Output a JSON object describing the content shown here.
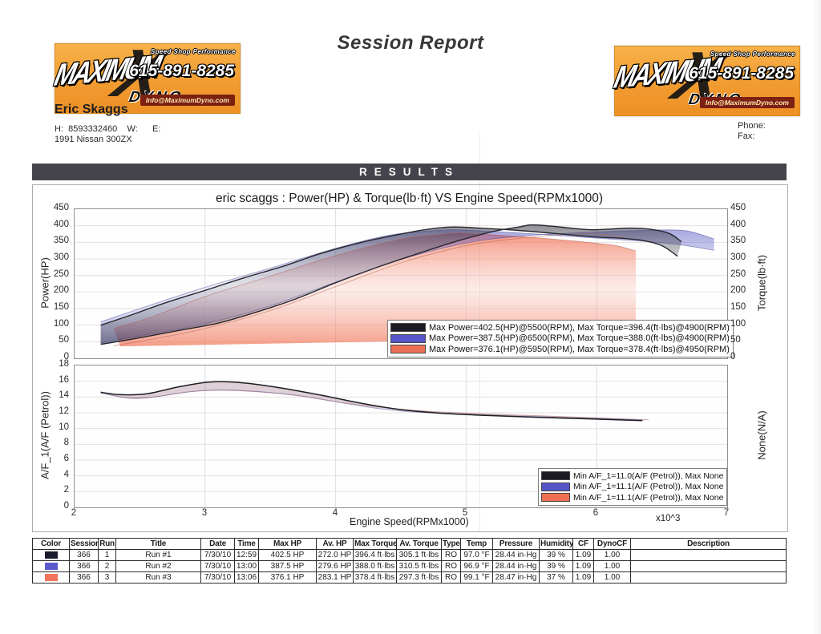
{
  "page": {
    "title": "Session Report"
  },
  "logo": {
    "brand_top": "MAXIMUM",
    "brand_bottom": "DYNO",
    "x_glyph": "X",
    "tagline": "Speed Shop Performance",
    "phone": "615-891-8285",
    "email": "Info@MaximumDyno.com"
  },
  "customer": {
    "name": "Eric Skaggs",
    "contact_line": "H:  8593332460    W:      E:",
    "vehicle": "1991 Nissan 300ZX",
    "phone_label": "Phone:",
    "fax_label": "Fax:"
  },
  "results_banner": "RESULTS",
  "chart_data": [
    {
      "type": "line",
      "title": "eric scaggs : Power(HP) & Torque(lb·ft) VS Engine Speed(RPMx1000)",
      "xlabel": "Engine Speed(RPMx1000)",
      "ylabel_left": "Power(HP)",
      "ylabel_right": "Torque(lb·ft)",
      "xlim": [
        2,
        7
      ],
      "ylim": [
        0,
        450
      ],
      "yticks": [
        0,
        50,
        100,
        150,
        200,
        250,
        300,
        350,
        400,
        450
      ],
      "xticks": [
        2,
        3,
        4,
        5,
        6,
        7
      ],
      "grid": true,
      "legend_position": "lower-right-inside",
      "legend": [
        {
          "color": "#1b1b26",
          "label": "Max Power=402.5(HP)@5500(RPM), Max Torque=396.4(ft·lbs)@4900(RPM)"
        },
        {
          "color": "#5656c8",
          "label": "Max Power=387.5(HP)@6500(RPM), Max Torque=388.0(ft·lbs)@4900(RPM)"
        },
        {
          "color": "#ee7054",
          "label": "Max Power=376.1(HP)@5950(RPM), Max Torque=378.4(ft·lbs)@4950(RPM)"
        }
      ],
      "band_colors": [
        "#2e2e3a",
        "#4646be",
        "#f07456"
      ],
      "band_base": [
        [
          2.35,
          36
        ],
        [
          6.3,
          64
        ]
      ],
      "series": [
        {
          "name": "Run #1 Torque",
          "color": "#26262e",
          "points": [
            [
              2.2,
              100
            ],
            [
              2.4,
              126
            ],
            [
              2.7,
              168
            ],
            [
              3.0,
              205
            ],
            [
              3.3,
              243
            ],
            [
              3.6,
              278
            ],
            [
              3.9,
              318
            ],
            [
              4.2,
              350
            ],
            [
              4.5,
              375
            ],
            [
              4.7,
              389
            ],
            [
              4.9,
              396.4
            ],
            [
              5.1,
              393
            ],
            [
              5.4,
              386
            ],
            [
              5.7,
              376
            ],
            [
              6.0,
              366
            ],
            [
              6.2,
              362
            ],
            [
              6.35,
              356
            ],
            [
              6.5,
              340
            ],
            [
              6.62,
              308
            ]
          ]
        },
        {
          "name": "Run #1 Power",
          "color": "#26262e",
          "points": [
            [
              2.2,
              42
            ],
            [
              2.5,
              62
            ],
            [
              2.8,
              84
            ],
            [
              3.1,
              106
            ],
            [
              3.4,
              140
            ],
            [
              3.7,
              180
            ],
            [
              4.0,
              228
            ],
            [
              4.3,
              272
            ],
            [
              4.6,
              312
            ],
            [
              4.9,
              350
            ],
            [
              5.2,
              382
            ],
            [
              5.4,
              396
            ],
            [
              5.5,
              402.5
            ],
            [
              5.65,
              399
            ],
            [
              5.8,
              393
            ],
            [
              5.95,
              388
            ],
            [
              6.1,
              390
            ],
            [
              6.25,
              393
            ],
            [
              6.4,
              390
            ],
            [
              6.55,
              378
            ],
            [
              6.65,
              352
            ]
          ]
        },
        {
          "name": "Run #2 Torque",
          "color": "rgba(70,70,150,0.5)",
          "points": [
            [
              2.2,
              110
            ],
            [
              2.5,
              150
            ],
            [
              3.0,
              214
            ],
            [
              3.5,
              272
            ],
            [
              4.0,
              332
            ],
            [
              4.4,
              371
            ],
            [
              4.7,
              384
            ],
            [
              4.9,
              388
            ],
            [
              5.2,
              383
            ],
            [
              5.5,
              376
            ],
            [
              5.8,
              368
            ],
            [
              6.1,
              360
            ],
            [
              6.4,
              352
            ],
            [
              6.65,
              342
            ],
            [
              6.9,
              326
            ]
          ]
        },
        {
          "name": "Run #2 Power",
          "color": "rgba(70,70,150,0.5)",
          "points": [
            [
              2.2,
              46
            ],
            [
              2.5,
              67
            ],
            [
              3.0,
              104
            ],
            [
              3.5,
              158
            ],
            [
              4.0,
              230
            ],
            [
              4.5,
              298
            ],
            [
              5.0,
              348
            ],
            [
              5.4,
              368
            ],
            [
              5.8,
              378
            ],
            [
              6.1,
              383
            ],
            [
              6.35,
              386
            ],
            [
              6.5,
              387.5
            ],
            [
              6.7,
              384
            ],
            [
              6.9,
              360
            ]
          ]
        },
        {
          "name": "Run #3 Torque",
          "color": "rgba(180,100,88,0.55)",
          "points": [
            [
              2.3,
              90
            ],
            [
              2.6,
              126
            ],
            [
              3.0,
              186
            ],
            [
              3.5,
              248
            ],
            [
              4.0,
              310
            ],
            [
              4.5,
              360
            ],
            [
              4.8,
              374
            ],
            [
              4.95,
              378.4
            ],
            [
              5.2,
              373
            ],
            [
              5.5,
              365
            ],
            [
              5.8,
              355
            ],
            [
              6.0,
              347
            ],
            [
              6.15,
              340
            ],
            [
              6.3,
              324
            ]
          ]
        },
        {
          "name": "Run #3 Power",
          "color": "rgba(180,100,88,0.55)",
          "points": [
            [
              2.3,
              38
            ],
            [
              2.6,
              58
            ],
            [
              3.0,
              90
            ],
            [
              3.5,
              144
            ],
            [
              4.0,
              216
            ],
            [
              4.5,
              288
            ],
            [
              5.0,
              340
            ],
            [
              5.4,
              362
            ],
            [
              5.7,
              372
            ],
            [
              5.95,
              376.1
            ],
            [
              6.1,
              371
            ],
            [
              6.25,
              360
            ]
          ]
        }
      ]
    },
    {
      "type": "line",
      "title": "",
      "xlabel": "Engine Speed(RPMx1000)",
      "x_scale_note": "x10^3",
      "ylabel_left": "A/F_1(A/F (Petrol))",
      "ylabel_right": "None(N/A)",
      "xlim": [
        2,
        7
      ],
      "ylim": [
        0,
        18
      ],
      "yticks": [
        0,
        2,
        4,
        6,
        8,
        10,
        12,
        14,
        16,
        18
      ],
      "xticks": [
        2,
        3,
        4,
        5,
        6,
        7
      ],
      "grid": true,
      "legend_position": "lower-right-inside",
      "legend": [
        {
          "color": "#1b1b26",
          "label": "Min A/F_1=11.0(A/F (Petrol)), Max None"
        },
        {
          "color": "#5656c8",
          "label": "Min A/F_1=11.1(A/F (Petrol)), Max None"
        },
        {
          "color": "#ee7054",
          "label": "Min A/F_1=11.1(A/F (Petrol)), Max None"
        }
      ],
      "band_fills": [
        "rgba(140,90,110,0.28)",
        "rgba(100,100,175,0.22)"
      ],
      "series": [
        {
          "name": "Run #1 A/F",
          "color": "#1d1d24",
          "points": [
            [
              2.2,
              14.6
            ],
            [
              2.35,
              14.3
            ],
            [
              2.55,
              14.4
            ],
            [
              2.8,
              15.3
            ],
            [
              3.0,
              15.85
            ],
            [
              3.15,
              15.95
            ],
            [
              3.35,
              15.7
            ],
            [
              3.6,
              15.1
            ],
            [
              3.9,
              14.2
            ],
            [
              4.2,
              13.2
            ],
            [
              4.5,
              12.4
            ],
            [
              4.8,
              11.95
            ],
            [
              5.1,
              11.7
            ],
            [
              5.5,
              11.45
            ],
            [
              6.0,
              11.2
            ],
            [
              6.35,
              11.0
            ]
          ]
        },
        {
          "name": "Run #2 A/F",
          "color": "rgba(80,80,150,0.45)",
          "points": [
            [
              2.2,
              14.5
            ],
            [
              2.4,
              13.9
            ],
            [
              2.6,
              14.0
            ],
            [
              2.85,
              14.6
            ],
            [
              3.1,
              14.9
            ],
            [
              3.4,
              14.7
            ],
            [
              3.7,
              14.2
            ],
            [
              4.0,
              13.4
            ],
            [
              4.3,
              12.6
            ],
            [
              4.6,
              12.1
            ],
            [
              5.0,
              11.8
            ],
            [
              5.5,
              11.5
            ],
            [
              6.0,
              11.3
            ],
            [
              6.35,
              11.1
            ]
          ]
        },
        {
          "name": "Run #3 A/F",
          "color": "rgba(190,110,95,0.5)",
          "points": [
            [
              2.25,
              14.4
            ],
            [
              2.45,
              13.8
            ],
            [
              2.65,
              14.1
            ],
            [
              2.9,
              14.7
            ],
            [
              3.15,
              14.85
            ],
            [
              3.45,
              14.6
            ],
            [
              3.75,
              14.1
            ],
            [
              4.05,
              13.3
            ],
            [
              4.35,
              12.7
            ],
            [
              4.7,
              12.2
            ],
            [
              5.1,
              11.9
            ],
            [
              5.6,
              11.6
            ],
            [
              6.1,
              11.3
            ],
            [
              6.4,
              11.1
            ]
          ]
        }
      ]
    }
  ],
  "table": {
    "headers": [
      "Color",
      "Session",
      "Run",
      "Title",
      "Date",
      "Time",
      "Max HP",
      "Av. HP",
      "Max Torque",
      "Av. Torque",
      "Type",
      "Temp",
      "Pressure",
      "Humidity",
      "CF",
      "DynoCF",
      "Description"
    ],
    "rows": [
      {
        "color": "#1b1b2e",
        "cells": [
          "366",
          "1",
          "Run #1",
          "7/30/10",
          "12:59",
          "402.5 HP",
          "272.0 HP",
          "396.4 ft·lbs",
          "305.1 ft·lbs",
          "RO",
          "97.0 °F",
          "28.44 in·Hg",
          "39 %",
          "1.09",
          "1.00",
          ""
        ]
      },
      {
        "color": "#5a5acc",
        "cells": [
          "366",
          "2",
          "Run #2",
          "7/30/10",
          "13:00",
          "387.5 HP",
          "279.6 HP",
          "388.0 ft·lbs",
          "310.5 ft·lbs",
          "RO",
          "96.9 °F",
          "28.44 in·Hg",
          "39 %",
          "1.09",
          "1.00",
          ""
        ]
      },
      {
        "color": "#f2745e",
        "cells": [
          "366",
          "3",
          "Run #3",
          "7/30/10",
          "13:06",
          "376.1 HP",
          "283.1 HP",
          "378.4 ft·lbs",
          "297.3 ft·lbs",
          "RO",
          "99.1 °F",
          "28.47 in·Hg",
          "37 %",
          "1.09",
          "1.00",
          ""
        ]
      }
    ]
  }
}
